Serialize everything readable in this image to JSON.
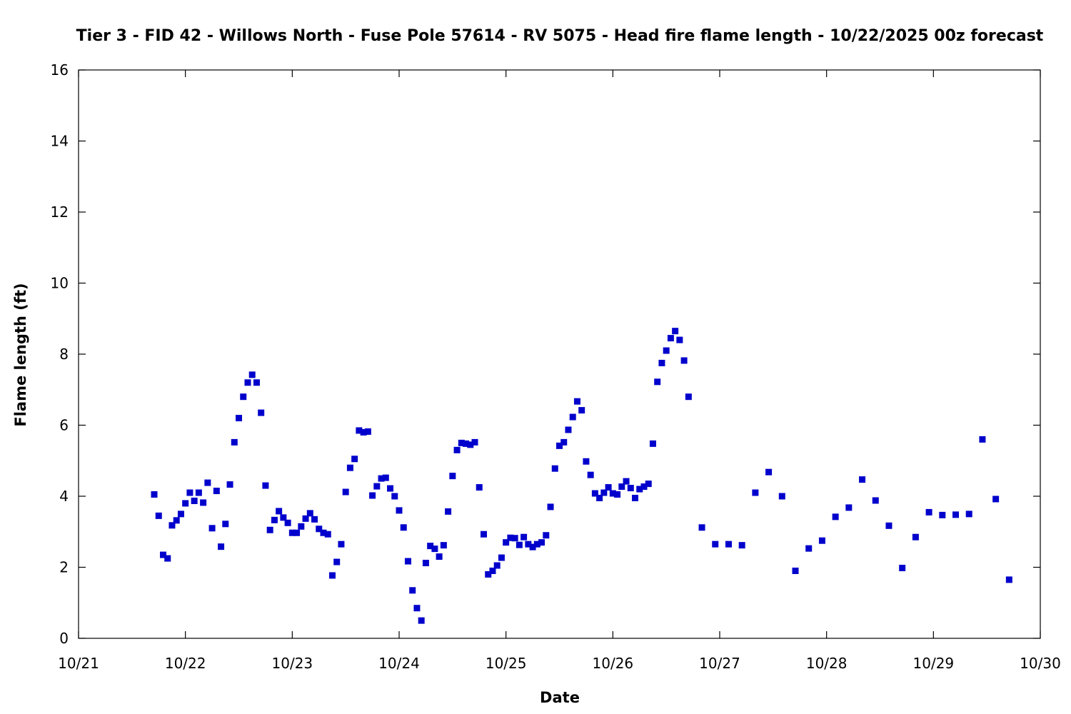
{
  "chart_data": {
    "type": "scatter",
    "title": "Tier 3 - FID 42 - Willows North - Fuse Pole 57614 - RV 5075 - Head fire flame length - 10/22/2025 00z forecast",
    "xlabel": "Date",
    "ylabel": "Flame length (ft)",
    "xlim": [
      "10/21",
      "10/30"
    ],
    "ylim": [
      0,
      16
    ],
    "x_ticks": [
      "10/21",
      "10/22",
      "10/23",
      "10/24",
      "10/25",
      "10/26",
      "10/27",
      "10/28",
      "10/29",
      "10/30"
    ],
    "y_ticks": [
      "0",
      "2",
      "4",
      "6",
      "8",
      "10",
      "12",
      "14",
      "16"
    ],
    "grid": false,
    "marker_color": "#0000cc",
    "series": [
      {
        "x": [
          "10/21 17:00",
          "10/21 18:00",
          "10/21 19:00",
          "10/21 20:00",
          "10/21 21:00",
          "10/21 22:00",
          "10/21 23:00",
          "10/22 00:00",
          "10/22 01:00",
          "10/22 02:00",
          "10/22 03:00",
          "10/22 04:00",
          "10/22 05:00",
          "10/22 06:00",
          "10/22 07:00",
          "10/22 08:00",
          "10/22 09:00",
          "10/22 10:00",
          "10/22 11:00",
          "10/22 12:00",
          "10/22 13:00",
          "10/22 14:00",
          "10/22 15:00",
          "10/22 16:00",
          "10/22 17:00",
          "10/22 18:00",
          "10/22 19:00",
          "10/22 20:00",
          "10/22 21:00",
          "10/22 22:00",
          "10/22 23:00",
          "10/23 00:00",
          "10/23 01:00",
          "10/23 02:00",
          "10/23 03:00",
          "10/23 04:00",
          "10/23 05:00",
          "10/23 06:00",
          "10/23 07:00",
          "10/23 08:00",
          "10/23 09:00",
          "10/23 10:00",
          "10/23 11:00",
          "10/23 12:00",
          "10/23 13:00",
          "10/23 14:00",
          "10/23 15:00",
          "10/23 16:00",
          "10/23 17:00",
          "10/23 18:00",
          "10/23 19:00",
          "10/23 20:00",
          "10/23 21:00",
          "10/23 22:00",
          "10/23 23:00",
          "10/24 00:00",
          "10/24 01:00",
          "10/24 02:00",
          "10/24 03:00",
          "10/24 04:00",
          "10/24 05:00",
          "10/24 06:00",
          "10/24 07:00",
          "10/24 08:00",
          "10/24 09:00",
          "10/24 10:00",
          "10/24 11:00",
          "10/24 12:00",
          "10/24 13:00",
          "10/24 14:00",
          "10/24 15:00",
          "10/24 16:00",
          "10/24 17:00",
          "10/24 18:00",
          "10/24 19:00",
          "10/24 20:00",
          "10/24 21:00",
          "10/24 22:00",
          "10/24 23:00",
          "10/25 00:00",
          "10/25 01:00",
          "10/25 02:00",
          "10/25 03:00",
          "10/25 04:00",
          "10/25 05:00",
          "10/25 06:00",
          "10/25 07:00",
          "10/25 08:00",
          "10/25 09:00",
          "10/25 10:00",
          "10/25 11:00",
          "10/25 12:00",
          "10/25 13:00",
          "10/25 14:00",
          "10/25 15:00",
          "10/25 16:00",
          "10/25 17:00",
          "10/25 18:00",
          "10/25 19:00",
          "10/25 20:00",
          "10/25 21:00",
          "10/25 22:00",
          "10/25 23:00",
          "10/26 00:00",
          "10/26 01:00",
          "10/26 02:00",
          "10/26 03:00",
          "10/26 04:00",
          "10/26 05:00",
          "10/26 06:00",
          "10/26 07:00",
          "10/26 08:00",
          "10/26 09:00",
          "10/26 10:00",
          "10/26 11:00",
          "10/26 12:00",
          "10/26 13:00",
          "10/26 14:00",
          "10/26 15:00",
          "10/26 16:00",
          "10/26 17:00",
          "10/26 20:00",
          "10/26 23:00",
          "10/27 02:00",
          "10/27 05:00",
          "10/27 08:00",
          "10/27 11:00",
          "10/27 14:00",
          "10/27 17:00",
          "10/27 20:00",
          "10/27 23:00",
          "10/28 02:00",
          "10/28 05:00",
          "10/28 08:00",
          "10/28 11:00",
          "10/28 14:00",
          "10/28 17:00",
          "10/28 20:00",
          "10/28 23:00",
          "10/29 02:00",
          "10/29 05:00",
          "10/29 08:00",
          "10/29 11:00",
          "10/29 14:00",
          "10/29 17:00"
        ],
        "y": [
          4.05,
          3.45,
          2.35,
          2.25,
          3.18,
          3.32,
          3.5,
          3.8,
          4.1,
          3.87,
          4.1,
          3.82,
          4.38,
          3.1,
          4.15,
          2.58,
          3.22,
          4.33,
          5.52,
          6.2,
          6.8,
          7.2,
          7.42,
          7.2,
          6.35,
          4.3,
          3.05,
          3.33,
          3.58,
          3.4,
          3.25,
          2.97,
          2.97,
          3.15,
          3.37,
          3.52,
          3.35,
          3.08,
          2.97,
          2.93,
          1.77,
          2.15,
          2.65,
          4.12,
          4.8,
          5.05,
          5.85,
          5.8,
          5.82,
          4.02,
          4.28,
          4.5,
          4.52,
          4.22,
          4.0,
          3.6,
          3.12,
          2.17,
          1.35,
          0.85,
          0.5,
          2.12,
          2.6,
          2.52,
          2.3,
          2.62,
          3.57,
          4.57,
          5.3,
          5.5,
          5.48,
          5.45,
          5.52,
          4.25,
          2.93,
          1.8,
          1.9,
          2.05,
          2.27,
          2.7,
          2.83,
          2.82,
          2.63,
          2.85,
          2.65,
          2.57,
          2.65,
          2.7,
          2.9,
          3.7,
          4.78,
          5.42,
          5.52,
          5.87,
          6.23,
          6.67,
          6.42,
          4.98,
          4.6,
          4.08,
          3.95,
          4.1,
          4.25,
          4.08,
          4.05,
          4.27,
          4.42,
          4.23,
          3.95,
          4.2,
          4.27,
          4.35,
          5.48,
          7.22,
          7.75,
          8.1,
          8.45,
          8.65,
          8.4,
          7.82,
          6.8,
          3.12,
          2.65,
          2.65,
          2.62,
          4.1,
          4.68,
          4.0,
          1.9,
          2.53,
          2.75,
          3.42,
          3.68,
          4.47,
          3.88,
          3.17,
          1.98,
          2.85,
          3.55,
          3.47,
          3.48,
          3.5,
          5.6,
          3.92,
          1.65
        ]
      }
    ]
  }
}
